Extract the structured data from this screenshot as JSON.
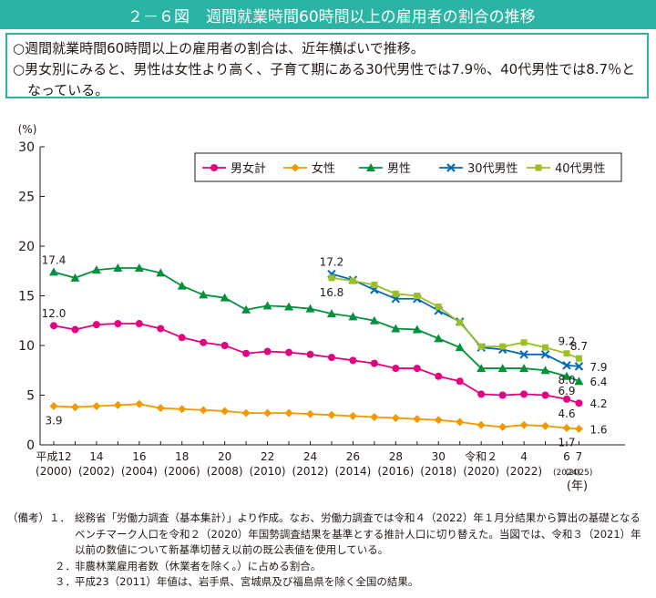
{
  "title": {
    "number": "２－６図",
    "text": "週間就業時間60時間以上の雇用者の割合の推移"
  },
  "summary": [
    "○週間就業時間60時間以上の雇用者の割合は、近年横ばいで推移。",
    "○男女別にみると、男性は女性より高く、子育て期にある30代男性では7.9％、40代男性では8.7％となっている。"
  ],
  "notes": {
    "lead": "（備考）",
    "items": [
      {
        "num": "１．",
        "text": "総務省「労働力調査（基本集計）」より作成。なお、労働力調査では令和４（2022）年１月分結果から算出の基礎となるベンチマーク人口を令和２（2020）年国勢調査結果を基準とする推計人口に切り替えた。当図では、令和３（2021）年以前の数値について新基準切替え以前の既公表値を使用している。"
      },
      {
        "num": "２．",
        "text": "非農林業雇用者数（休業者を除く。）に占める割合。"
      },
      {
        "num": "３．",
        "text": "平成23（2011）年値は、岩手県、宮城県及び福島県を除く全国の結果。"
      }
    ]
  },
  "chart_data": {
    "type": "line",
    "y_unit": "(%)",
    "x_unit": "(年)",
    "ylim": [
      0,
      30
    ],
    "y_ticks": [
      0,
      5,
      10,
      15,
      20,
      25,
      30
    ],
    "x": [
      2000,
      2001,
      2002,
      2003,
      2004,
      2005,
      2006,
      2007,
      2008,
      2009,
      2010,
      2011,
      2012,
      2013,
      2014,
      2015,
      2016,
      2017,
      2018,
      2019,
      2020,
      2021,
      2022,
      2023,
      2024,
      2025
    ],
    "x_tick_labels": [
      {
        "x": 2000,
        "era": "平成12",
        "year": "(2000)"
      },
      {
        "x": 2002,
        "era": "14",
        "year": "(2002)"
      },
      {
        "x": 2004,
        "era": "16",
        "year": "(2004)"
      },
      {
        "x": 2006,
        "era": "18",
        "year": "(2006)"
      },
      {
        "x": 2008,
        "era": "20",
        "year": "(2008)"
      },
      {
        "x": 2010,
        "era": "22",
        "year": "(2010)"
      },
      {
        "x": 2012,
        "era": "24",
        "year": "(2012)"
      },
      {
        "x": 2014,
        "era": "26",
        "year": "(2014)"
      },
      {
        "x": 2016,
        "era": "28",
        "year": "(2016)"
      },
      {
        "x": 2018,
        "era": "30",
        "year": "(2018)"
      },
      {
        "x": 2020,
        "era": "令和２",
        "year": "(2020)"
      },
      {
        "x": 2022,
        "era": "4",
        "year": "(2022)"
      },
      {
        "x": 2024,
        "era": "6",
        "year": "(2024)"
      },
      {
        "x": 2025,
        "era": "7",
        "year": "(2025)"
      }
    ],
    "series": [
      {
        "name": "男女計",
        "color": "#e4007f",
        "marker": "circle",
        "values": [
          12.0,
          11.6,
          12.1,
          12.2,
          12.2,
          11.7,
          10.8,
          10.3,
          10.0,
          9.2,
          9.4,
          9.3,
          9.1,
          8.8,
          8.5,
          8.2,
          7.7,
          7.7,
          6.9,
          6.4,
          5.1,
          5.0,
          5.1,
          5.0,
          4.6,
          4.2
        ],
        "labels": [
          {
            "x": 2000,
            "text": "12.0",
            "pos": "above"
          },
          {
            "x": 2024,
            "text": "4.6",
            "pos": "below"
          },
          {
            "x": 2025,
            "text": "4.2",
            "pos": "right"
          }
        ]
      },
      {
        "name": "女性",
        "color": "#f39800",
        "marker": "diamond",
        "values": [
          3.9,
          3.8,
          3.9,
          4.0,
          4.1,
          3.7,
          3.6,
          3.5,
          3.4,
          3.2,
          3.2,
          3.2,
          3.1,
          3.0,
          2.9,
          2.8,
          2.7,
          2.6,
          2.5,
          2.3,
          2.0,
          1.8,
          2.0,
          1.9,
          1.7,
          1.6
        ],
        "labels": [
          {
            "x": 2000,
            "text": "3.9",
            "pos": "below"
          },
          {
            "x": 2024,
            "text": "1.7",
            "pos": "below"
          },
          {
            "x": 2025,
            "text": "1.6",
            "pos": "right"
          }
        ]
      },
      {
        "name": "男性",
        "color": "#00913a",
        "marker": "triangle",
        "values": [
          17.4,
          16.8,
          17.6,
          17.8,
          17.8,
          17.3,
          16.0,
          15.1,
          14.8,
          13.6,
          14.0,
          13.9,
          13.7,
          13.2,
          12.9,
          12.5,
          11.7,
          11.6,
          10.7,
          9.8,
          7.7,
          7.7,
          7.7,
          7.5,
          6.9,
          6.4
        ],
        "labels": [
          {
            "x": 2000,
            "text": "17.4",
            "pos": "above"
          },
          {
            "x": 2024,
            "text": "6.9",
            "pos": "below"
          },
          {
            "x": 2025,
            "text": "6.4",
            "pos": "right"
          }
        ]
      },
      {
        "name": "30代男性",
        "color": "#0068b7",
        "marker": "cross",
        "values": [
          null,
          null,
          null,
          null,
          null,
          null,
          null,
          null,
          null,
          null,
          null,
          null,
          null,
          17.2,
          16.6,
          15.6,
          14.7,
          14.7,
          13.5,
          12.4,
          9.8,
          9.6,
          9.1,
          9.1,
          8.0,
          7.9
        ],
        "labels": [
          {
            "x": 2013,
            "text": "17.2",
            "pos": "above"
          },
          {
            "x": 2024,
            "text": "8.0",
            "pos": "below"
          },
          {
            "x": 2025,
            "text": "7.9",
            "pos": "right"
          }
        ]
      },
      {
        "name": "40代男性",
        "color": "#9cbf22",
        "marker": "square",
        "values": [
          null,
          null,
          null,
          null,
          null,
          null,
          null,
          null,
          null,
          null,
          null,
          null,
          null,
          16.8,
          16.5,
          16.1,
          15.2,
          15.0,
          13.9,
          12.3,
          9.9,
          9.9,
          10.3,
          9.8,
          9.2,
          8.7
        ],
        "labels": [
          {
            "x": 2013,
            "text": "16.8",
            "pos": "below"
          },
          {
            "x": 2024,
            "text": "9.2",
            "pos": "above"
          },
          {
            "x": 2025,
            "text": "8.7",
            "pos": "above"
          }
        ]
      }
    ],
    "legend": "top-right",
    "grid": false
  }
}
